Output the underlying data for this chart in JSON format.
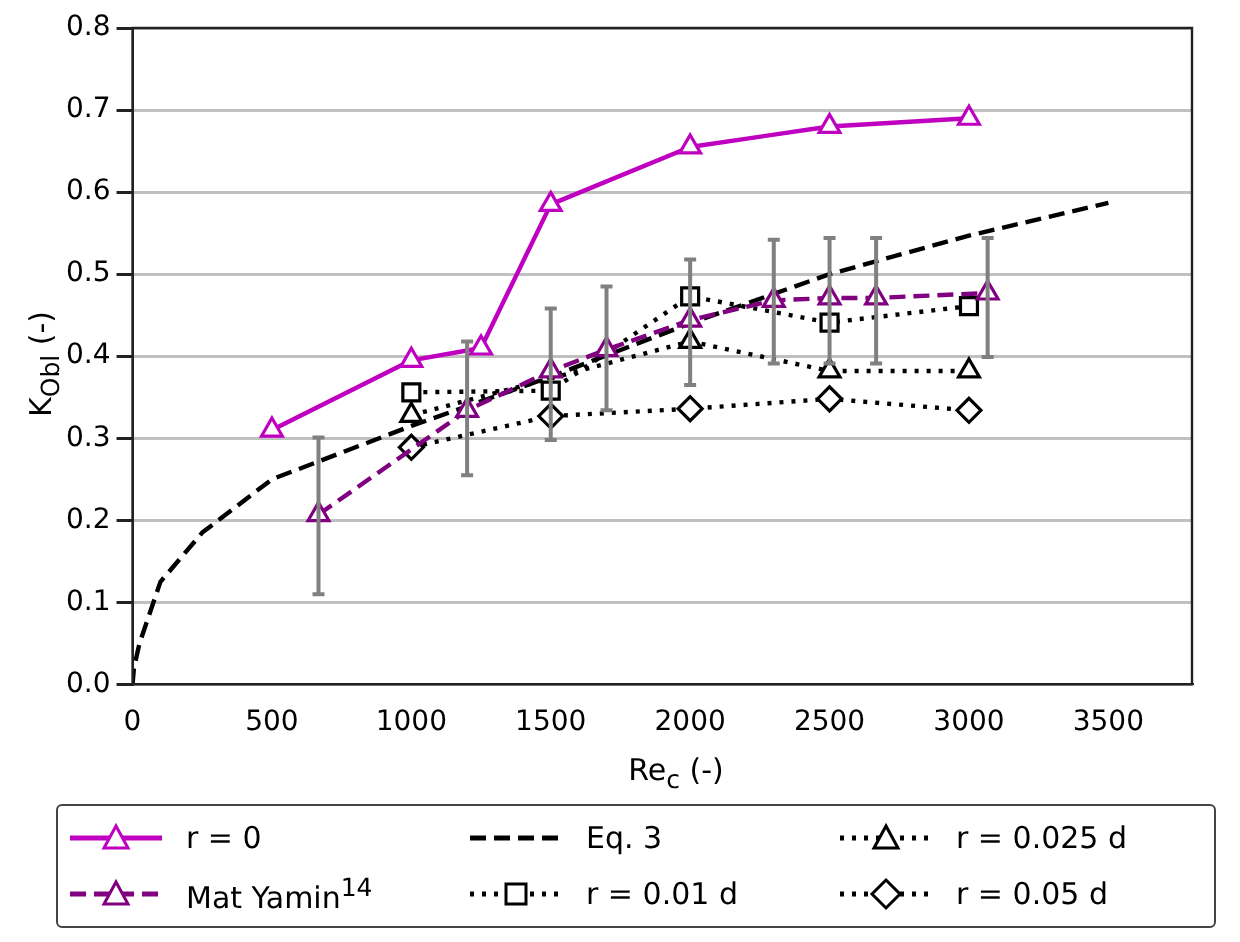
{
  "chart_data": {
    "type": "line",
    "xlabel": "Re$_{c}$ (-)",
    "ylabel": "K$_{Obl}$ (-)",
    "xlim": [
      0,
      3800
    ],
    "xticks": [
      0,
      500,
      1000,
      1500,
      2000,
      2500,
      3000,
      3500
    ],
    "ylim": [
      0,
      0.8
    ],
    "yticks": [
      {
        "value": 0,
        "label": "0.0"
      },
      {
        "value": 0.1,
        "label": "0.1"
      },
      {
        "value": 0.2,
        "label": "0.2"
      },
      {
        "value": 0.3,
        "label": "0.3"
      },
      {
        "value": 0.4,
        "label": "0.4"
      },
      {
        "value": 0.5,
        "label": "0.5"
      },
      {
        "value": 0.6,
        "label": "0.6"
      },
      {
        "value": 0.7,
        "label": "0.7"
      },
      {
        "value": 0.8,
        "label": "0.8"
      }
    ],
    "grid": "y",
    "legend": "bottom",
    "series": [
      {
        "name": "r = 0",
        "color": "#c000c0",
        "line_style": "solid",
        "marker": "triangle",
        "x": [
          500,
          1000,
          1250,
          1500,
          2000,
          2500,
          3000
        ],
        "values": [
          0.31,
          0.395,
          0.41,
          0.585,
          0.655,
          0.68,
          0.69
        ]
      },
      {
        "name": "Mat Yamin$^{14}$",
        "color": "#800080",
        "line_style": "dashed",
        "marker": "triangle",
        "x": [
          667,
          1200,
          1500,
          1700,
          2000,
          2300,
          2500,
          2667,
          3067
        ],
        "values": [
          0.207,
          0.334,
          0.382,
          0.408,
          0.444,
          0.468,
          0.471,
          0.471,
          0.477
        ],
        "errors": [
          [
            0.11,
            0.301
          ],
          [
            0.255,
            0.418
          ],
          [
            0.298,
            0.458
          ],
          [
            0.334,
            0.485
          ],
          [
            0.365,
            0.518
          ],
          [
            0.391,
            0.542
          ],
          [
            0.391,
            0.544
          ],
          [
            0.391,
            0.544
          ],
          [
            0.399,
            0.544
          ]
        ]
      },
      {
        "name": "Eq. 3",
        "color": "#000000",
        "line_style": "dashed",
        "marker": "none",
        "x": [
          0,
          5,
          25,
          100,
          250,
          500,
          1000,
          1500,
          2000,
          2500,
          3000,
          3500
        ],
        "values": [
          0,
          0.02,
          0.05,
          0.125,
          0.185,
          0.25,
          0.315,
          0.375,
          0.44,
          0.5,
          0.547,
          0.587
        ]
      },
      {
        "name": "r = 0.01 d",
        "color": "#000000",
        "line_style": "dotted",
        "marker": "square",
        "x": [
          1000,
          1500,
          2000,
          2500,
          3000
        ],
        "values": [
          0.356,
          0.358,
          0.473,
          0.441,
          0.461
        ]
      },
      {
        "name": "r = 0.025 d",
        "color": "#000000",
        "line_style": "dotted",
        "marker": "triangle",
        "x": [
          1000,
          2000,
          2500,
          3000
        ],
        "values": [
          0.328,
          0.418,
          0.382,
          0.382
        ]
      },
      {
        "name": "r = 0.05 d",
        "color": "#000000",
        "line_style": "dotted",
        "marker": "diamond",
        "x": [
          1000,
          1500,
          2000,
          2500,
          3000
        ],
        "values": [
          0.289,
          0.327,
          0.336,
          0.348,
          0.334
        ]
      }
    ]
  }
}
